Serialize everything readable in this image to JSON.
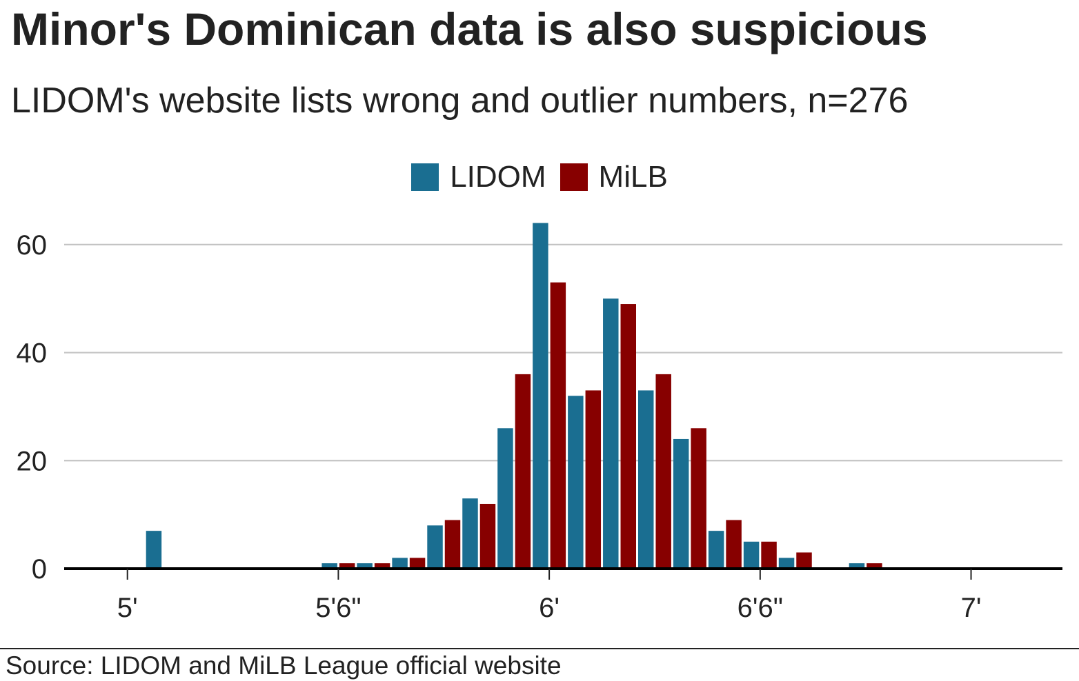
{
  "chart_data": {
    "type": "bar",
    "title": "Minor's Dominican data is also suspicious",
    "subtitle": "LIDOM's website lists wrong and outlier numbers, n=276",
    "source": "Source: LIDOM and MiLB League official website",
    "x_unit": "inches",
    "xlim": [
      58.2,
      86.6
    ],
    "ylim": [
      0,
      67
    ],
    "y_ticks": [
      0,
      20,
      40,
      60
    ],
    "x_ticks": [
      {
        "value": 60,
        "label": "5'"
      },
      {
        "value": 66,
        "label": "5'6\""
      },
      {
        "value": 72,
        "label": "6'"
      },
      {
        "value": 78,
        "label": "6'6\""
      },
      {
        "value": 84,
        "label": "7'"
      }
    ],
    "grid": true,
    "legend_position": "top-center",
    "colors": {
      "LIDOM": "#1a6e91",
      "MiLB": "#870000"
    },
    "x": [
      61,
      66,
      67,
      68,
      69,
      70,
      71,
      72,
      73,
      74,
      75,
      76,
      77,
      78,
      79,
      81
    ],
    "series": [
      {
        "name": "LIDOM",
        "values": [
          7,
          1,
          1,
          2,
          8,
          13,
          26,
          64,
          32,
          50,
          33,
          24,
          7,
          5,
          2,
          1
        ]
      },
      {
        "name": "MiLB",
        "values": [
          0,
          1,
          1,
          2,
          9,
          12,
          36,
          53,
          33,
          49,
          36,
          26,
          9,
          5,
          3,
          1
        ]
      }
    ]
  }
}
